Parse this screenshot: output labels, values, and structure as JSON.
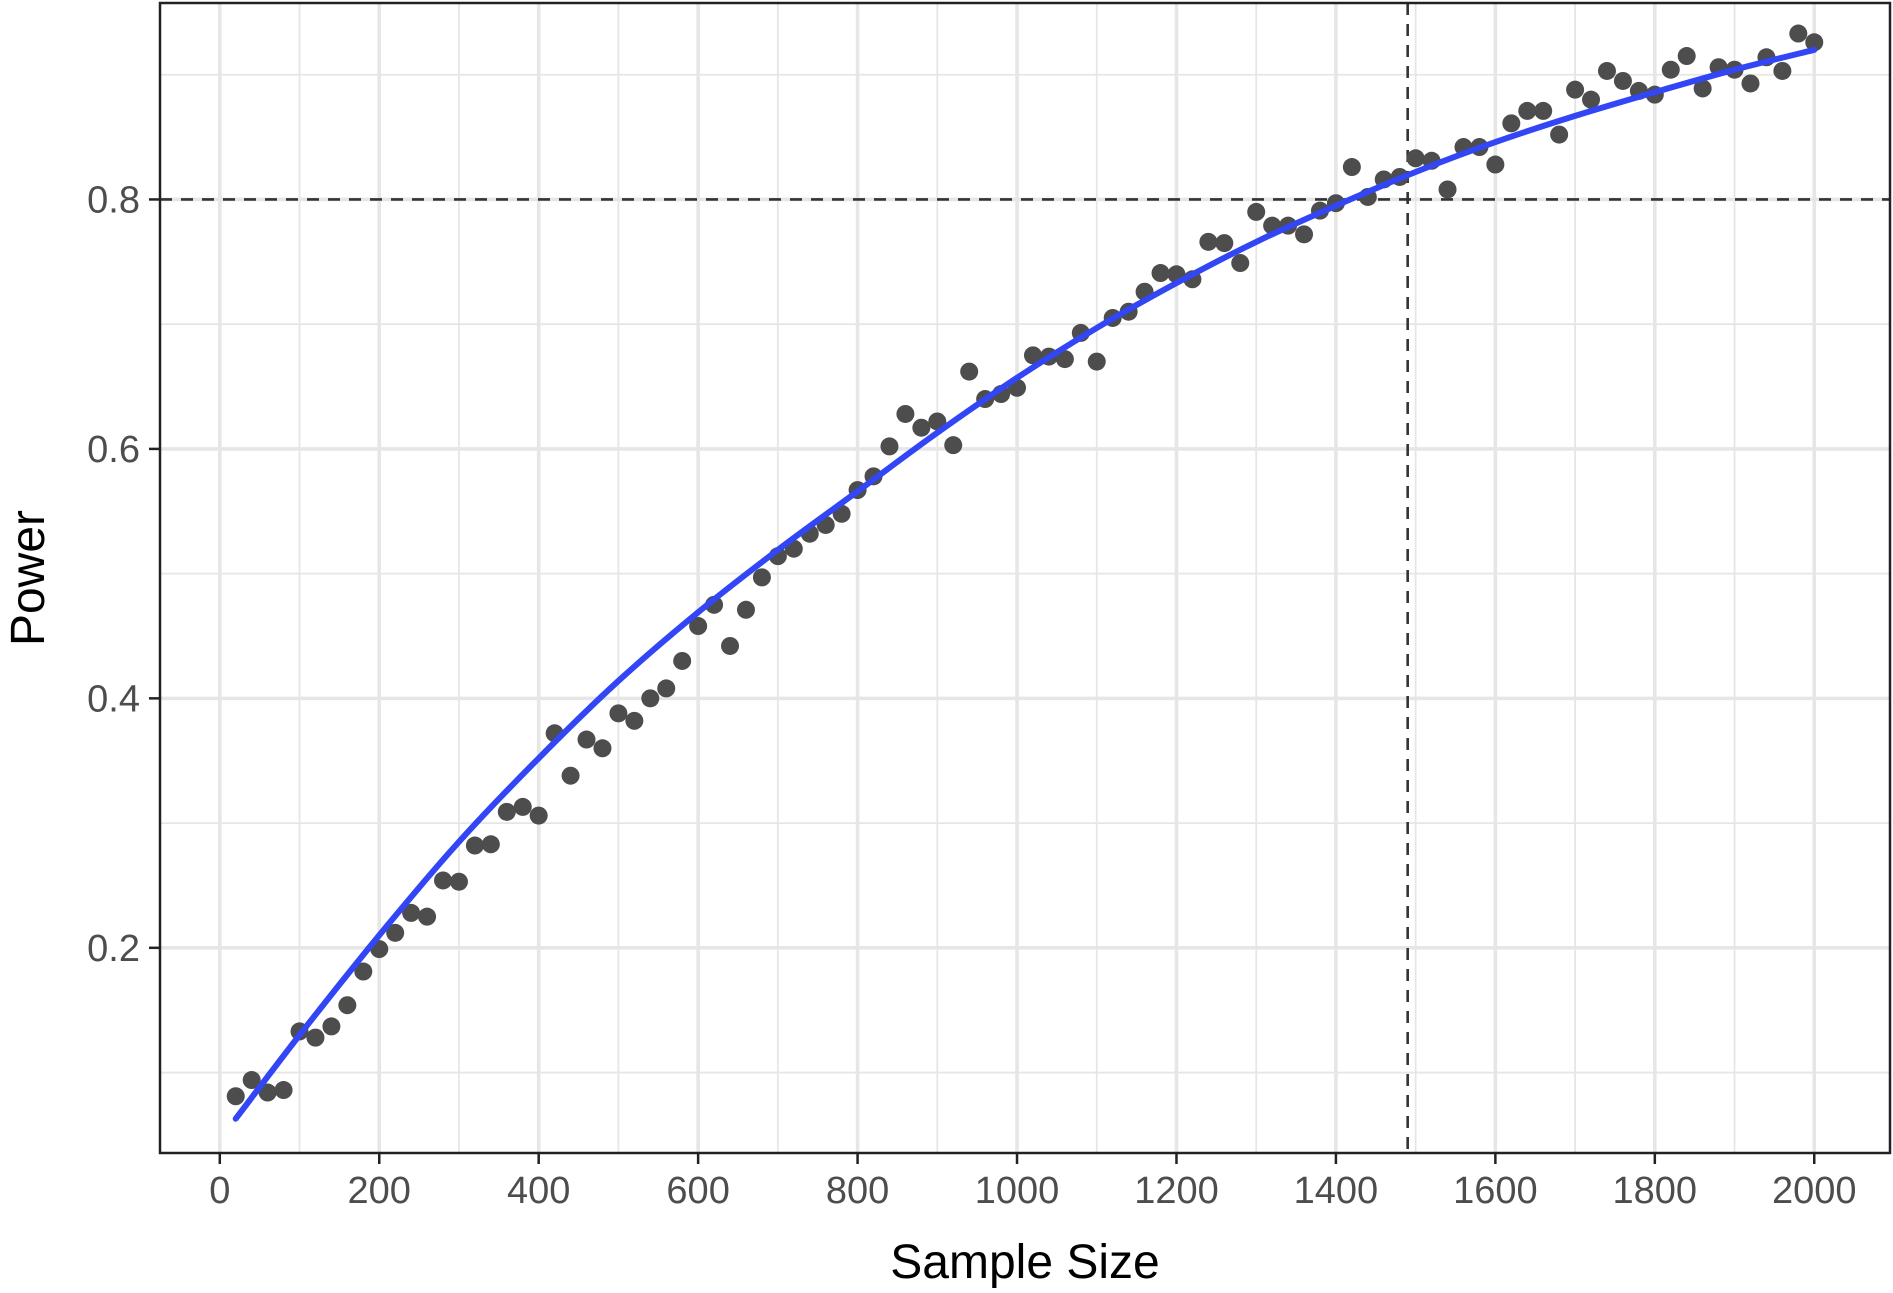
{
  "chart_data": {
    "type": "scatter",
    "title": "",
    "xlabel": "Sample Size",
    "ylabel": "Power",
    "xlim": [
      -75,
      2095
    ],
    "ylim": [
      0.0355,
      0.9575
    ],
    "x_ticks": [
      0,
      200,
      400,
      600,
      800,
      1000,
      1200,
      1400,
      1600,
      1800,
      2000
    ],
    "x_tick_labels": [
      "0",
      "200",
      "400",
      "600",
      "800",
      "1000",
      "1200",
      "1400",
      "1600",
      "1800",
      "2000"
    ],
    "y_ticks": [
      0.2,
      0.4,
      0.6,
      0.8
    ],
    "y_tick_labels": [
      "0.2",
      "0.4",
      "0.6",
      "0.8"
    ],
    "grid": true,
    "legend": "none",
    "colors": {
      "points": "#4d4d4d",
      "fit_line": "#3246f5",
      "reference_lines": "#333333",
      "grid": "#e6e6e6",
      "frame": "#222222"
    },
    "series": [
      {
        "kind": "points",
        "x": [
          20,
          40,
          60,
          80,
          100,
          120,
          140,
          160,
          180,
          200,
          220,
          240,
          260,
          280,
          300,
          320,
          340,
          360,
          380,
          400,
          420,
          440,
          460,
          480,
          500,
          520,
          540,
          560,
          580,
          600,
          620,
          640,
          660,
          680,
          700,
          720,
          740,
          760,
          780,
          800,
          820,
          840,
          860,
          880,
          900,
          920,
          940,
          960,
          980,
          1000,
          1020,
          1040,
          1060,
          1080,
          1100,
          1120,
          1140,
          1160,
          1180,
          1200,
          1220,
          1240,
          1260,
          1280,
          1300,
          1320,
          1340,
          1360,
          1380,
          1400,
          1420,
          1440,
          1460,
          1480,
          1500,
          1520,
          1540,
          1560,
          1580,
          1600,
          1620,
          1640,
          1660,
          1680,
          1700,
          1720,
          1740,
          1760,
          1780,
          1800,
          1820,
          1840,
          1860,
          1880,
          1900,
          1920,
          1940,
          1960,
          1980,
          2000
        ],
        "y": [
          0.081,
          0.094,
          0.084,
          0.086,
          0.133,
          0.128,
          0.137,
          0.154,
          0.181,
          0.199,
          0.212,
          0.228,
          0.225,
          0.254,
          0.253,
          0.282,
          0.283,
          0.309,
          0.313,
          0.306,
          0.372,
          0.338,
          0.367,
          0.36,
          0.388,
          0.382,
          0.4,
          0.408,
          0.43,
          0.458,
          0.475,
          0.442,
          0.471,
          0.497,
          0.514,
          0.52,
          0.532,
          0.539,
          0.548,
          0.567,
          0.578,
          0.602,
          0.628,
          0.617,
          0.622,
          0.603,
          0.662,
          0.64,
          0.644,
          0.649,
          0.675,
          0.674,
          0.672,
          0.693,
          0.67,
          0.705,
          0.71,
          0.726,
          0.741,
          0.74,
          0.736,
          0.766,
          0.765,
          0.749,
          0.79,
          0.779,
          0.779,
          0.772,
          0.791,
          0.797,
          0.826,
          0.802,
          0.816,
          0.818,
          0.833,
          0.831,
          0.808,
          0.842,
          0.842,
          0.828,
          0.861,
          0.871,
          0.871,
          0.852,
          0.888,
          0.88,
          0.903,
          0.895,
          0.887,
          0.884,
          0.904,
          0.915,
          0.889,
          0.906,
          0.904,
          0.893,
          0.914,
          0.903,
          0.933,
          0.926
        ]
      },
      {
        "kind": "smooth",
        "x": [
          20,
          100,
          200,
          300,
          400,
          500,
          600,
          700,
          800,
          900,
          1000,
          1100,
          1200,
          1300,
          1400,
          1500,
          1600,
          1700,
          1800,
          1900,
          2000
        ],
        "y": [
          0.063,
          0.13,
          0.21,
          0.285,
          0.352,
          0.414,
          0.469,
          0.519,
          0.566,
          0.613,
          0.657,
          0.697,
          0.733,
          0.766,
          0.795,
          0.822,
          0.846,
          0.867,
          0.886,
          0.904,
          0.92
        ]
      }
    ],
    "reference_lines": {
      "horizontal_y": 0.8,
      "vertical_x": 1490
    }
  }
}
